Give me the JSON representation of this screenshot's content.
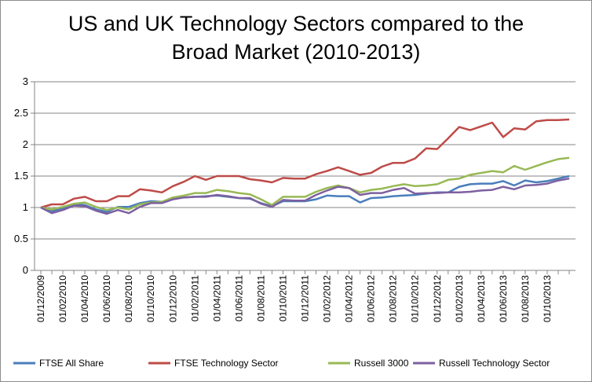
{
  "chart_data": {
    "type": "line",
    "title_line1": "US and UK Technology Sectors compared to the",
    "title_line2": "Broad Market (2010-2013)",
    "xlabel": "",
    "ylabel": "",
    "ylim": [
      0,
      3
    ],
    "y_ticks": [
      "0",
      "0.5",
      "1",
      "1.5",
      "2",
      "2.5",
      "3"
    ],
    "grid": true,
    "legend_position": "bottom",
    "x_tick_labels": [
      "01/12/2009",
      "01/02/2010",
      "01/04/2010",
      "01/06/2010",
      "01/08/2010",
      "01/10/2010",
      "01/12/2010",
      "01/02/2011",
      "01/04/2011",
      "01/06/2011",
      "01/08/2011",
      "01/10/2011",
      "01/12/2011",
      "01/02/2012",
      "01/04/2012",
      "01/06/2012",
      "01/08/2012",
      "01/10/2012",
      "01/12/2012",
      "01/02/2013",
      "01/04/2013",
      "01/06/2013",
      "01/08/2013",
      "01/10/2013"
    ],
    "series": [
      {
        "name": "FTSE All Share",
        "color": "#4a7ebb",
        "values": [
          1.0,
          0.94,
          0.99,
          1.05,
          1.04,
          0.97,
          0.93,
          1.01,
          1.01,
          1.07,
          1.1,
          1.09,
          1.15,
          1.16,
          1.17,
          1.18,
          1.19,
          1.17,
          1.15,
          1.14,
          1.07,
          1.02,
          1.1,
          1.1,
          1.1,
          1.13,
          1.19,
          1.18,
          1.18,
          1.08,
          1.15,
          1.16,
          1.18,
          1.19,
          1.2,
          1.22,
          1.24,
          1.24,
          1.33,
          1.37,
          1.38,
          1.38,
          1.42,
          1.35,
          1.43,
          1.4,
          1.42,
          1.46,
          1.5
        ]
      },
      {
        "name": "FTSE Technology Sector",
        "color": "#be4b48",
        "values": [
          1.0,
          1.05,
          1.05,
          1.14,
          1.17,
          1.1,
          1.1,
          1.18,
          1.18,
          1.29,
          1.27,
          1.24,
          1.34,
          1.41,
          1.5,
          1.44,
          1.5,
          1.5,
          1.5,
          1.45,
          1.43,
          1.4,
          1.47,
          1.46,
          1.46,
          1.53,
          1.58,
          1.64,
          1.58,
          1.52,
          1.55,
          1.65,
          1.71,
          1.71,
          1.78,
          1.94,
          1.93,
          2.1,
          2.28,
          2.23,
          2.29,
          2.35,
          2.12,
          2.26,
          2.24,
          2.37,
          2.39,
          2.39,
          2.4
        ]
      },
      {
        "name": "Russell 3000",
        "color": "#98b954",
        "values": [
          1.0,
          0.97,
          1.01,
          1.06,
          1.08,
          1.01,
          0.96,
          1.0,
          0.97,
          1.05,
          1.08,
          1.09,
          1.16,
          1.19,
          1.23,
          1.23,
          1.28,
          1.26,
          1.23,
          1.21,
          1.13,
          1.04,
          1.17,
          1.17,
          1.17,
          1.25,
          1.31,
          1.35,
          1.31,
          1.24,
          1.28,
          1.3,
          1.34,
          1.37,
          1.34,
          1.35,
          1.37,
          1.44,
          1.46,
          1.52,
          1.55,
          1.58,
          1.56,
          1.66,
          1.6,
          1.66,
          1.72,
          1.77,
          1.79
        ]
      },
      {
        "name": "Russell Technology Sector",
        "color": "#7d60a0",
        "values": [
          1.0,
          0.91,
          0.96,
          1.03,
          1.02,
          0.95,
          0.9,
          0.96,
          0.91,
          1.01,
          1.07,
          1.07,
          1.13,
          1.16,
          1.17,
          1.17,
          1.2,
          1.18,
          1.15,
          1.15,
          1.06,
          1.01,
          1.12,
          1.11,
          1.11,
          1.2,
          1.27,
          1.33,
          1.31,
          1.2,
          1.23,
          1.23,
          1.28,
          1.31,
          1.22,
          1.23,
          1.23,
          1.24,
          1.24,
          1.25,
          1.27,
          1.28,
          1.33,
          1.29,
          1.35,
          1.36,
          1.38,
          1.43,
          1.46
        ]
      }
    ]
  }
}
